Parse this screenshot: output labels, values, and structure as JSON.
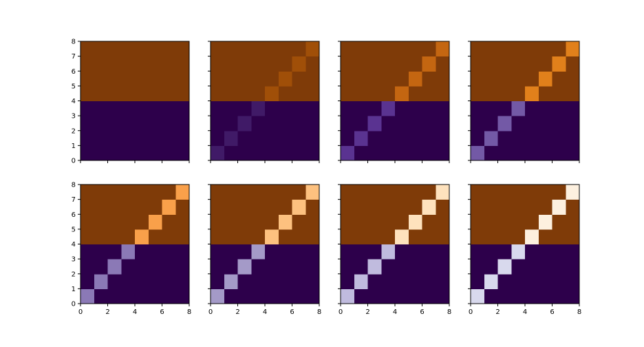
{
  "chart_data": {
    "type": "heatmap",
    "layout": {
      "rows": 2,
      "cols": 4
    },
    "grid_size": 8,
    "xlim": [
      0,
      8
    ],
    "ylim": [
      0,
      8
    ],
    "xticks": [
      0,
      2,
      4,
      6,
      8
    ],
    "yticks": [
      0,
      1,
      2,
      3,
      4,
      5,
      6,
      7,
      8
    ],
    "base_colors": {
      "lower_half": "#2d004b",
      "upper_half": "#7f3b08"
    },
    "diagonal_cells": [
      [
        0,
        0
      ],
      [
        1,
        1
      ],
      [
        2,
        2
      ],
      [
        3,
        3
      ],
      [
        4,
        4
      ],
      [
        5,
        5
      ],
      [
        6,
        6
      ],
      [
        7,
        7
      ]
    ],
    "panels": [
      {
        "diag_lower": "#2d004b",
        "diag_upper": "#7f3b08",
        "show_xticklabels": false,
        "show_yticklabels": true
      },
      {
        "diag_lower": "#401a67",
        "diag_upper": "#a04f08",
        "show_xticklabels": false,
        "show_yticklabels": false
      },
      {
        "diag_lower": "#5a3391",
        "diag_upper": "#c46611",
        "show_xticklabels": false,
        "show_yticklabels": false
      },
      {
        "diag_lower": "#7359a6",
        "diag_upper": "#e1801b",
        "show_xticklabels": false,
        "show_yticklabels": false
      },
      {
        "diag_lower": "#8b79b6",
        "diag_upper": "#f9a04a",
        "show_xticklabels": true,
        "show_yticklabels": true
      },
      {
        "diag_lower": "#a49ac8",
        "diag_upper": "#fdc17f",
        "show_xticklabels": true,
        "show_yticklabels": false
      },
      {
        "diag_lower": "#c0bbde",
        "diag_upper": "#fee2bd",
        "show_xticklabels": true,
        "show_yticklabels": false
      },
      {
        "diag_lower": "#d8d9ed",
        "diag_upper": "#fdf0df",
        "show_xticklabels": true,
        "show_yticklabels": false
      }
    ]
  }
}
